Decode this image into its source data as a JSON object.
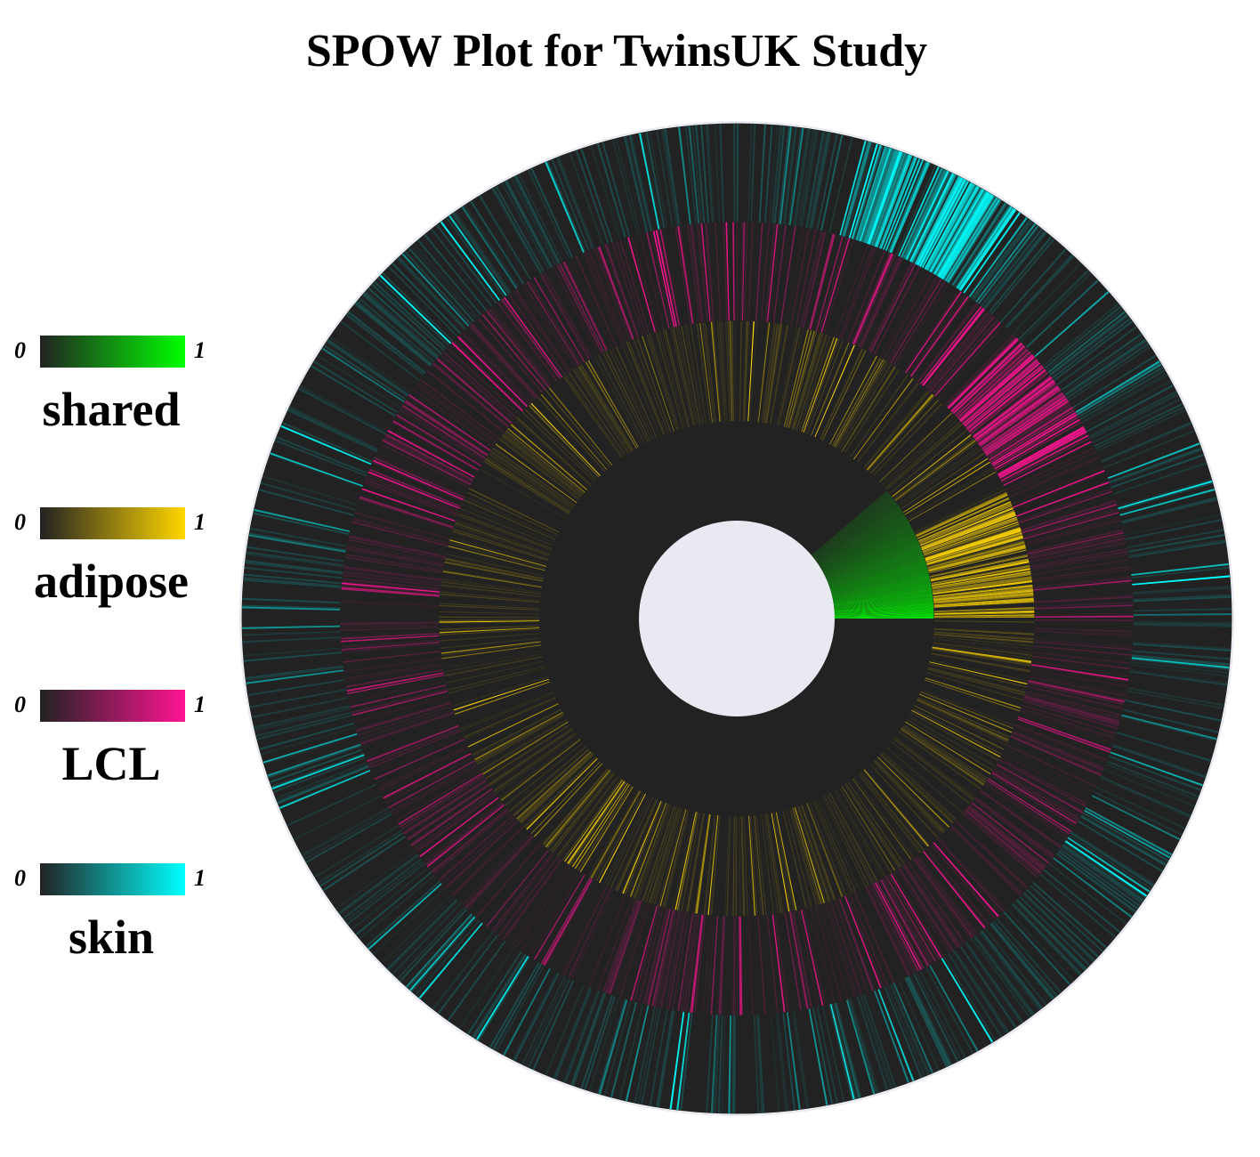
{
  "title": "SPOW Plot for TwinsUK Study",
  "colors": {
    "background_ring": "#222222",
    "center_hole": "#e8e9f1",
    "outer_edge": "#e8e9f1"
  },
  "legend": [
    {
      "label": "shared",
      "min_label": "0",
      "max_label": "1",
      "color_low": "#222222",
      "color_high": "#00ff00"
    },
    {
      "label": "adipose",
      "min_label": "0",
      "max_label": "1",
      "color_low": "#222222",
      "color_high": "#ffd700"
    },
    {
      "label": "LCL",
      "min_label": "0",
      "max_label": "1",
      "color_low": "#222222",
      "color_high": "#ff1493"
    },
    {
      "label": "skin",
      "min_label": "0",
      "max_label": "1",
      "color_low": "#222222",
      "color_high": "#00ffff"
    }
  ],
  "chart_data": {
    "type": "radial-heatmap",
    "title": "SPOW Plot for TwinsUK Study",
    "value_range": [
      0,
      1
    ],
    "ring_order_inner_to_outer": [
      "shared",
      "adipose",
      "LCL",
      "skin"
    ],
    "rings": [
      {
        "name": "shared",
        "color_high": "#00ff00",
        "n_segments": 1800,
        "strong_segment_fraction": 0.07,
        "strong_segment_value_range": [
          0.15,
          1.0
        ]
      },
      {
        "name": "adipose",
        "color_high": "#ffd700",
        "n_segments": 1800,
        "sparse_line_density": 0.06,
        "dense_cluster_start_deg": 0,
        "dense_cluster_end_deg": 25
      },
      {
        "name": "LCL",
        "color_high": "#ff1493",
        "n_segments": 1800,
        "sparse_line_density": 0.08,
        "dense_cluster_start_deg": 28,
        "dense_cluster_end_deg": 45
      },
      {
        "name": "skin",
        "color_high": "#00ffff",
        "n_segments": 1800,
        "sparse_line_density": 0.05,
        "dense_cluster_start_deg": 55,
        "dense_cluster_end_deg": 75
      }
    ]
  }
}
